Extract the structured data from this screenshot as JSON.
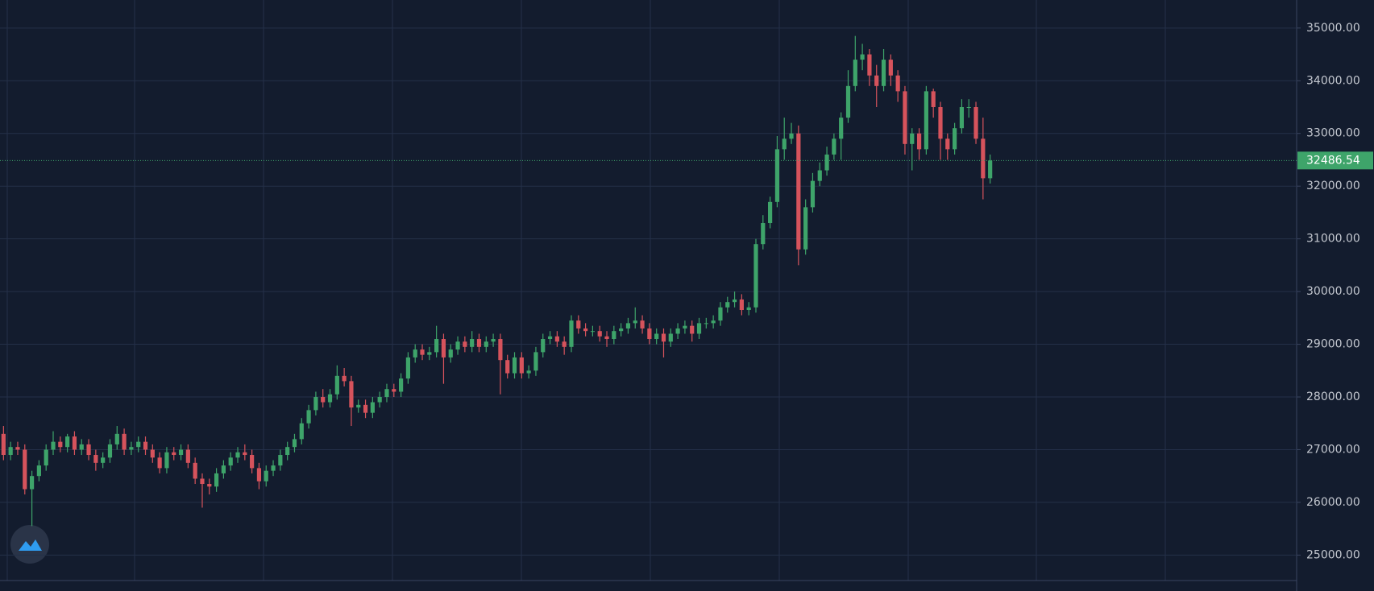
{
  "chart_data": {
    "type": "candlestick",
    "colors": {
      "up": "#3ea46a",
      "down": "#d6535c"
    },
    "ylim": [
      24517,
      35532
    ],
    "yticks": [
      {
        "value": 25000,
        "label": "25000.00"
      },
      {
        "value": 26000,
        "label": "26000.00"
      },
      {
        "value": 27000,
        "label": "27000.00"
      },
      {
        "value": 28000,
        "label": "28000.00"
      },
      {
        "value": 29000,
        "label": "29000.00"
      },
      {
        "value": 30000,
        "label": "30000.00"
      },
      {
        "value": 31000,
        "label": "31000.00"
      },
      {
        "value": 32000,
        "label": "32000.00"
      },
      {
        "value": 33000,
        "label": "33000.00"
      },
      {
        "value": 34000,
        "label": "34000.00"
      },
      {
        "value": 35000,
        "label": "35000.00"
      }
    ],
    "grid": true,
    "open": [
      27300,
      26900,
      27050,
      27000,
      26250,
      26500,
      26700,
      27000,
      27150,
      27050,
      27250,
      27000,
      27100,
      26900,
      26750,
      26850,
      27100,
      27300,
      27000,
      27050,
      27150,
      27000,
      26850,
      26650,
      26950,
      26900,
      27000,
      26750,
      26450,
      26350,
      26300,
      26550,
      26700,
      26850,
      26950,
      26900,
      26650,
      26400,
      26600,
      26700,
      26900,
      27050,
      27200,
      27500,
      27750,
      28000,
      27900,
      28050,
      28400,
      28300,
      27800,
      27850,
      27700,
      27900,
      28000,
      28150,
      28100,
      28350,
      28750,
      28900,
      28800,
      28850,
      29100,
      28750,
      28900,
      29050,
      28950,
      29100,
      28950,
      29050,
      29100,
      28700,
      28450,
      28750,
      28450,
      28500,
      28850,
      29100,
      29150,
      29050,
      28950,
      29450,
      29300,
      29250,
      29250,
      29150,
      29100,
      29250,
      29300,
      29400,
      29450,
      29300,
      29100,
      29200,
      29050,
      29200,
      29300,
      29350,
      29200,
      29400,
      29400,
      29450,
      29700,
      29800,
      29850,
      29650,
      29700,
      30900,
      31300,
      31700,
      32700,
      32900,
      33000,
      30800,
      31600,
      32100,
      32300,
      32600,
      32900,
      33300,
      33900,
      34400,
      34500,
      34100,
      33900,
      34400,
      34100,
      33800,
      32800,
      33000,
      32700,
      33800,
      33500,
      32900,
      32700,
      33100,
      33500,
      33500,
      32900,
      32150
    ],
    "high": [
      27450,
      27150,
      27150,
      27100,
      26600,
      26800,
      27100,
      27350,
      27250,
      27300,
      27350,
      27200,
      27200,
      27000,
      26950,
      27200,
      27450,
      27400,
      27150,
      27250,
      27250,
      27100,
      26950,
      27050,
      27050,
      27100,
      27100,
      26850,
      26550,
      26450,
      26650,
      26800,
      26950,
      27050,
      27100,
      27000,
      26750,
      26700,
      26800,
      27000,
      27150,
      27300,
      27600,
      27850,
      28100,
      28150,
      28150,
      28600,
      28550,
      28400,
      27950,
      27950,
      28000,
      28100,
      28250,
      28250,
      28450,
      28850,
      29000,
      29000,
      28950,
      29350,
      29200,
      29000,
      29150,
      29150,
      29250,
      29200,
      29150,
      29200,
      29200,
      28800,
      28850,
      28850,
      28600,
      28950,
      29200,
      29250,
      29250,
      29150,
      29550,
      29550,
      29400,
      29350,
      29350,
      29250,
      29350,
      29400,
      29500,
      29700,
      29550,
      29400,
      29300,
      29300,
      29300,
      29400,
      29450,
      29450,
      29500,
      29500,
      29550,
      29800,
      29900,
      30000,
      29950,
      29800,
      31000,
      31450,
      31800,
      32950,
      33300,
      33200,
      33150,
      31750,
      32250,
      32450,
      32750,
      33000,
      33400,
      34200,
      34850,
      34700,
      34600,
      34300,
      34600,
      34500,
      34200,
      33900,
      33100,
      33100,
      33900,
      33850,
      33600,
      33000,
      33200,
      33650,
      33650,
      33600,
      33300,
      32600
    ],
    "low": [
      26800,
      26800,
      26900,
      26150,
      25550,
      26400,
      26600,
      26900,
      26950,
      26950,
      26900,
      26900,
      26800,
      26600,
      26650,
      26750,
      27000,
      26900,
      26900,
      26950,
      26900,
      26750,
      26550,
      26550,
      26800,
      26800,
      26650,
      26350,
      25900,
      26150,
      26200,
      26450,
      26600,
      26750,
      26800,
      26550,
      26250,
      26300,
      26500,
      26600,
      26800,
      26950,
      27100,
      27400,
      27650,
      27800,
      27800,
      27950,
      28200,
      27450,
      27700,
      27600,
      27600,
      27800,
      27900,
      28000,
      28000,
      28250,
      28650,
      28700,
      28700,
      28750,
      28250,
      28650,
      28800,
      28850,
      28850,
      28850,
      28850,
      28950,
      28050,
      28350,
      28350,
      28350,
      28350,
      28400,
      28750,
      29000,
      28950,
      28800,
      28850,
      29200,
      29150,
      29150,
      29050,
      28950,
      29000,
      29150,
      29200,
      29300,
      29200,
      29000,
      29000,
      28750,
      28950,
      29100,
      29200,
      29050,
      29100,
      29300,
      29300,
      29350,
      29600,
      29700,
      29550,
      29550,
      29600,
      30800,
      31200,
      31600,
      32500,
      32800,
      30500,
      30700,
      31500,
      32000,
      32200,
      32500,
      32500,
      33200,
      33800,
      34200,
      33900,
      33500,
      33800,
      33900,
      33600,
      32600,
      32300,
      32500,
      32600,
      33300,
      32500,
      32500,
      32600,
      33000,
      33300,
      32800,
      31750,
      32050
    ],
    "close": [
      26900,
      27050,
      27000,
      26250,
      26500,
      26700,
      27000,
      27150,
      27050,
      27250,
      27000,
      27100,
      26900,
      26750,
      26850,
      27100,
      27300,
      27000,
      27050,
      27150,
      27000,
      26850,
      26650,
      26950,
      26900,
      27000,
      26750,
      26450,
      26350,
      26300,
      26550,
      26700,
      26850,
      26950,
      26900,
      26650,
      26400,
      26600,
      26700,
      26900,
      27050,
      27200,
      27500,
      27750,
      28000,
      27900,
      28050,
      28400,
      28300,
      27800,
      27850,
      27700,
      27900,
      28000,
      28150,
      28100,
      28350,
      28750,
      28900,
      28800,
      28850,
      29100,
      28750,
      28900,
      29050,
      28950,
      29100,
      28950,
      29050,
      29100,
      28700,
      28450,
      28750,
      28450,
      28500,
      28850,
      29100,
      29150,
      29050,
      28950,
      29450,
      29300,
      29250,
      29250,
      29150,
      29100,
      29250,
      29300,
      29400,
      29450,
      29300,
      29100,
      29200,
      29050,
      29200,
      29300,
      29350,
      29200,
      29400,
      29400,
      29450,
      29700,
      29800,
      29850,
      29650,
      29700,
      30900,
      31300,
      31700,
      32700,
      32900,
      33000,
      30800,
      31600,
      32100,
      32300,
      32600,
      32900,
      33300,
      33900,
      34400,
      34500,
      34100,
      33900,
      34400,
      34100,
      33800,
      32800,
      33000,
      32700,
      33800,
      33500,
      32900,
      32700,
      33100,
      33500,
      33500,
      32900,
      32150,
      32486.54
    ]
  }
}
